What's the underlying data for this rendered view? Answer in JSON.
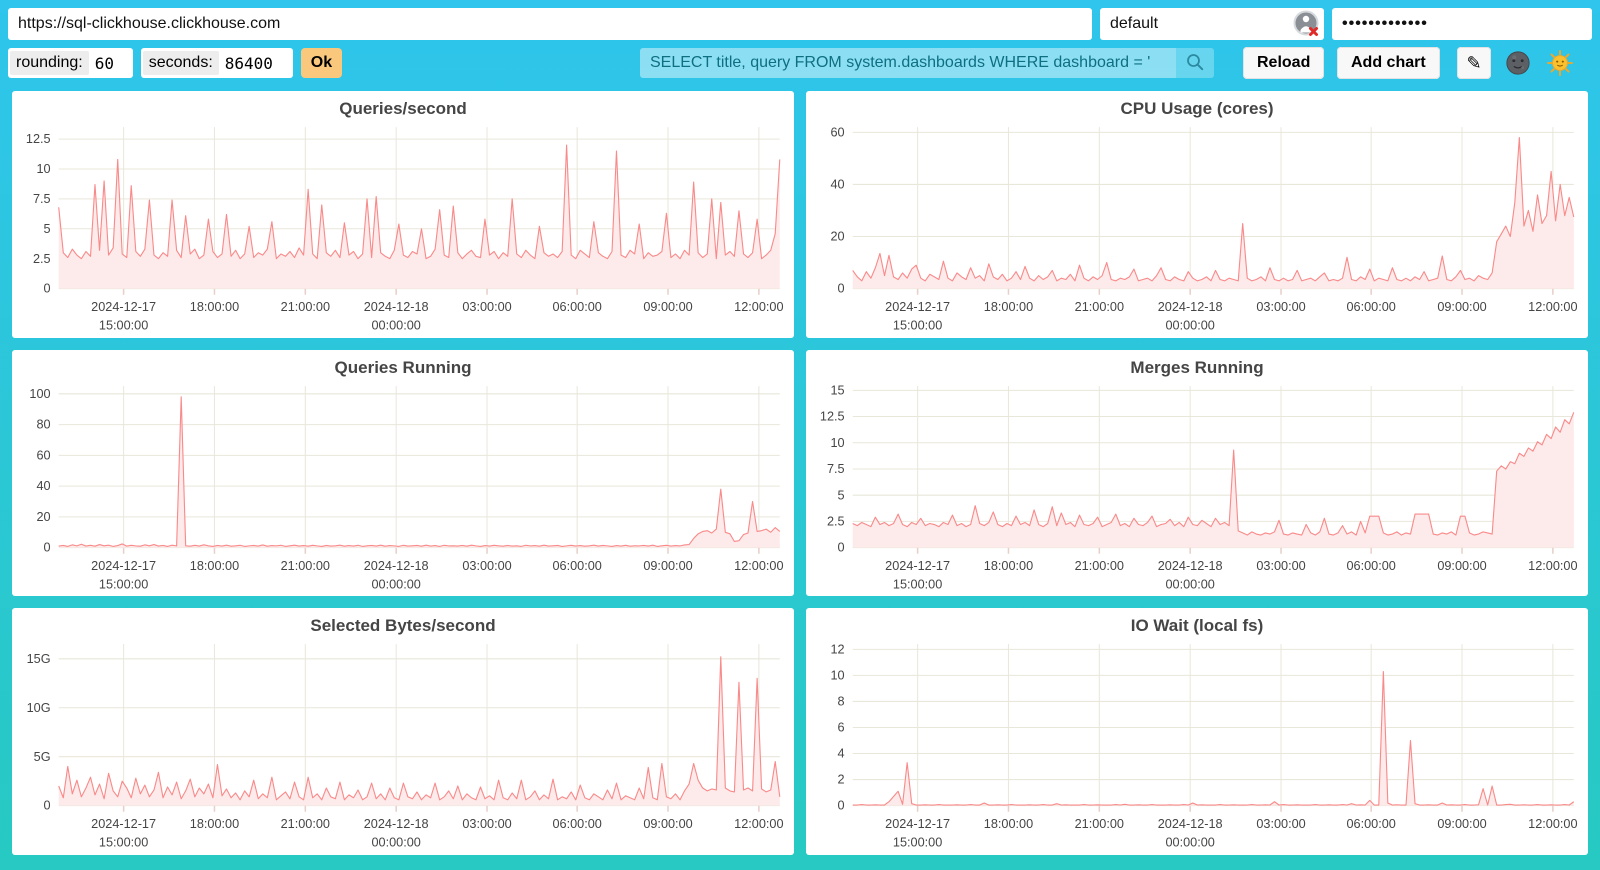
{
  "colors": {
    "bg_top": "#2fc5ec",
    "bg_bottom": "#27c9c2",
    "line": "#f98a8a",
    "fill": "#fdeaea",
    "grid": "#e9e7da",
    "tick_text": "#454545",
    "axis_tick": "#e8cfc9",
    "button_orange": "#f9c87c",
    "search_text": "#0e6e82"
  },
  "topbar": {
    "url_value": "https://sql-clickhouse.clickhouse.com",
    "user_value": "default",
    "user_icon": "broken-image-icon",
    "password_value": "•••••••••••••"
  },
  "controls": {
    "rounding_label": "rounding:",
    "rounding_value": "60",
    "seconds_label": "seconds:",
    "seconds_value": "86400",
    "ok_label": "Ok",
    "query_value": "SELECT title, query FROM system.dashboards WHERE dashboard = '",
    "search_icon": "magnifier-icon",
    "reload_label": "Reload",
    "add_chart_label": "Add chart",
    "edit_icon": "✎",
    "dark_theme_icon": "new-moon-face-icon",
    "light_theme_icon": "sun-with-face-icon"
  },
  "chart_data": {
    "type": "area",
    "x_axis_note": "time, 2024-12-17 ~12:45 to 2024-12-18 ~12:45, grid on, no legend",
    "time_ticks": [
      {
        "frac": 0.09,
        "line1": "2024-12-17",
        "line2": "15:00:00"
      },
      {
        "frac": 0.216,
        "line1": "18:00:00"
      },
      {
        "frac": 0.342,
        "line1": "21:00:00"
      },
      {
        "frac": 0.468,
        "line1": "2024-12-18",
        "line2": "00:00:00"
      },
      {
        "frac": 0.594,
        "line1": "03:00:00"
      },
      {
        "frac": 0.719,
        "line1": "06:00:00"
      },
      {
        "frac": 0.845,
        "line1": "09:00:00"
      },
      {
        "frac": 0.971,
        "line1": "12:00:00"
      }
    ],
    "charts": [
      {
        "title": "Queries/second",
        "ymax": 13.5,
        "yticks": [
          {
            "v": 0,
            "l": "0"
          },
          {
            "v": 2.5,
            "l": "2.5"
          },
          {
            "v": 5,
            "l": "5"
          },
          {
            "v": 7.5,
            "l": "7.5"
          },
          {
            "v": 10,
            "l": "10"
          },
          {
            "v": 12.5,
            "l": "12.5"
          }
        ],
        "values": [
          6.8,
          3.0,
          2.6,
          3.3,
          2.8,
          2.5,
          3.1,
          2.7,
          8.7,
          3.2,
          9.0,
          2.8,
          3.4,
          10.8,
          2.9,
          2.6,
          8.6,
          3.1,
          2.7,
          3.3,
          7.4,
          2.8,
          2.5,
          3.0,
          2.7,
          7.4,
          3.2,
          2.6,
          6.1,
          2.9,
          3.3,
          2.5,
          2.8,
          5.8,
          3.1,
          2.6,
          2.9,
          6.2,
          2.7,
          3.2,
          2.5,
          2.9,
          5.2,
          2.6,
          3.0,
          2.8,
          3.3,
          5.6,
          2.5,
          2.9,
          2.7,
          3.1,
          2.6,
          3.4,
          2.8,
          8.3,
          2.9,
          2.5,
          7.0,
          3.0,
          2.7,
          3.2,
          2.6,
          5.5,
          2.8,
          3.1,
          2.5,
          2.9,
          7.5,
          2.6,
          7.7,
          3.0,
          2.7,
          2.5,
          3.2,
          5.4,
          2.8,
          2.6,
          3.1,
          2.9,
          5.0,
          2.5,
          2.7,
          3.3,
          6.6,
          2.8,
          2.6,
          6.9,
          3.0,
          2.5,
          2.9,
          3.2,
          2.7,
          2.6,
          5.8,
          2.8,
          3.1,
          2.5,
          3.0,
          2.7,
          7.5,
          2.9,
          2.6,
          3.2,
          2.8,
          2.5,
          5.2,
          3.0,
          2.7,
          2.9,
          2.6,
          3.1,
          12.0,
          2.8,
          2.5,
          3.2,
          2.9,
          2.6,
          5.6,
          3.0,
          2.7,
          2.5,
          3.1,
          11.5,
          2.8,
          2.6,
          3.2,
          2.9,
          5.4,
          2.5,
          3.0,
          2.7,
          2.8,
          3.1,
          6.3,
          2.6,
          2.9,
          2.5,
          3.2,
          2.8,
          8.9,
          3.0,
          2.6,
          2.9,
          7.5,
          2.5,
          7.2,
          2.8,
          3.1,
          2.7,
          6.5,
          2.9,
          2.6,
          3.0,
          5.8,
          2.5,
          2.8,
          3.2,
          4.6,
          10.8
        ]
      },
      {
        "title": "CPU Usage (cores)",
        "ymax": 62,
        "yticks": [
          {
            "v": 0,
            "l": "0"
          },
          {
            "v": 20,
            "l": "20"
          },
          {
            "v": 40,
            "l": "40"
          },
          {
            "v": 60,
            "l": "60"
          }
        ],
        "values": [
          7.0,
          4.5,
          3.0,
          6.5,
          4.0,
          8.0,
          13.5,
          5.0,
          12.8,
          4.5,
          3.5,
          6.0,
          4.0,
          7.5,
          9.0,
          4.0,
          3.0,
          5.5,
          4.5,
          3.5,
          10.5,
          4.0,
          3.0,
          6.0,
          4.5,
          3.5,
          8.0,
          4.0,
          5.0,
          3.0,
          9.5,
          4.5,
          3.5,
          5.5,
          3.0,
          4.0,
          6.5,
          3.5,
          8.5,
          4.0,
          3.0,
          5.0,
          3.5,
          4.5,
          7.0,
          3.0,
          4.0,
          3.5,
          5.5,
          3.0,
          9.0,
          4.0,
          3.0,
          4.5,
          3.5,
          5.0,
          10.0,
          3.5,
          3.0,
          4.0,
          3.5,
          4.5,
          7.5,
          3.0,
          3.5,
          4.0,
          3.0,
          5.0,
          8.0,
          3.5,
          3.0,
          4.5,
          3.5,
          3.0,
          6.5,
          4.0,
          3.0,
          3.5,
          4.5,
          3.0,
          7.0,
          3.5,
          3.0,
          4.0,
          3.5,
          3.0,
          25.0,
          4.0,
          3.0,
          3.5,
          4.5,
          3.0,
          8.0,
          3.5,
          3.0,
          4.0,
          3.0,
          3.5,
          7.0,
          3.0,
          3.5,
          4.0,
          3.0,
          4.5,
          6.0,
          3.0,
          3.5,
          3.0,
          4.0,
          12.0,
          3.5,
          3.0,
          4.5,
          3.5,
          7.5,
          3.0,
          4.0,
          3.5,
          3.0,
          8.0,
          3.5,
          3.0,
          4.0,
          3.0,
          4.5,
          3.5,
          6.5,
          3.0,
          3.5,
          4.0,
          12.5,
          3.5,
          3.0,
          4.5,
          7.0,
          3.5,
          4.0,
          3.0,
          5.0,
          4.0,
          3.5,
          6.0,
          18.0,
          21.0,
          24.0,
          20.0,
          33.0,
          58.0,
          24.0,
          30.0,
          22.0,
          36.0,
          25.0,
          28.0,
          45.0,
          26.0,
          40.0,
          28.0,
          35.0,
          27.5
        ]
      },
      {
        "title": "Queries Running",
        "ymax": 105,
        "yticks": [
          {
            "v": 0,
            "l": "0"
          },
          {
            "v": 20,
            "l": "20"
          },
          {
            "v": 40,
            "l": "40"
          },
          {
            "v": 60,
            "l": "60"
          },
          {
            "v": 80,
            "l": "80"
          },
          {
            "v": 100,
            "l": "100"
          }
        ],
        "values": [
          1.0,
          1.4,
          0.8,
          1.8,
          1.1,
          2.2,
          1.0,
          1.5,
          0.9,
          2.0,
          1.2,
          1.6,
          0.8,
          1.3,
          2.4,
          1.0,
          1.5,
          1.1,
          0.9,
          1.8,
          1.2,
          2.0,
          1.0,
          1.4,
          0.8,
          1.6,
          1.1,
          98.0,
          1.2,
          0.9,
          1.5,
          1.0,
          1.8,
          1.2,
          0.8,
          1.4,
          1.0,
          1.6,
          0.9,
          1.2,
          1.5,
          0.8,
          1.1,
          1.4,
          1.0,
          1.7,
          0.9,
          1.3,
          1.1,
          1.5,
          0.8,
          1.2,
          1.6,
          1.0,
          1.3,
          0.9,
          1.5,
          1.1,
          0.8,
          1.4,
          1.0,
          1.2,
          1.6,
          0.9,
          1.3,
          1.0,
          1.5,
          0.8,
          1.2,
          1.4,
          1.0,
          1.6,
          0.9,
          1.3,
          1.1,
          0.8,
          1.5,
          1.0,
          1.2,
          1.4,
          0.9,
          1.6,
          1.0,
          1.3,
          0.8,
          1.5,
          1.1,
          1.2,
          1.0,
          1.4,
          0.9,
          1.6,
          1.1,
          0.8,
          1.3,
          1.0,
          1.5,
          1.2,
          0.9,
          1.4,
          1.0,
          1.2,
          0.8,
          1.5,
          1.1,
          1.3,
          0.9,
          1.6,
          1.0,
          1.2,
          1.4,
          0.8,
          1.1,
          1.5,
          1.0,
          1.3,
          0.9,
          1.2,
          1.6,
          1.0,
          1.4,
          1.1,
          0.8,
          1.3,
          1.0,
          1.5,
          0.9,
          1.2,
          1.1,
          1.4,
          1.0,
          1.6,
          0.8,
          1.2,
          1.5,
          1.0,
          1.3,
          1.1,
          1.7,
          2.0,
          6.0,
          9.0,
          10.5,
          11.0,
          9.5,
          12.0,
          38.0,
          10.0,
          9.0,
          4.0,
          4.5,
          8.5,
          9.5,
          30.0,
          10.5,
          11.0,
          12.0,
          10.0,
          13.0,
          10.5
        ]
      },
      {
        "title": "Merges Running",
        "ymax": 15.4,
        "yticks": [
          {
            "v": 0,
            "l": "0"
          },
          {
            "v": 2.5,
            "l": "2.5"
          },
          {
            "v": 5,
            "l": "5"
          },
          {
            "v": 7.5,
            "l": "7.5"
          },
          {
            "v": 10,
            "l": "10"
          },
          {
            "v": 12.5,
            "l": "12.5"
          },
          {
            "v": 15,
            "l": "15"
          }
        ],
        "values": [
          2.3,
          2.1,
          2.4,
          2.2,
          2.0,
          2.9,
          2.2,
          2.4,
          2.1,
          2.3,
          3.2,
          2.2,
          2.0,
          2.4,
          2.2,
          2.8,
          2.1,
          2.3,
          2.2,
          2.0,
          2.4,
          2.2,
          3.1,
          2.1,
          2.3,
          2.0,
          2.2,
          4.0,
          2.3,
          2.1,
          2.4,
          3.4,
          2.2,
          2.0,
          2.3,
          2.1,
          3.0,
          2.2,
          2.4,
          2.1,
          3.6,
          2.2,
          2.0,
          2.3,
          3.9,
          2.1,
          3.3,
          2.2,
          2.4,
          2.0,
          3.1,
          2.2,
          2.1,
          2.3,
          2.9,
          2.0,
          2.2,
          2.4,
          3.2,
          2.1,
          2.3,
          2.0,
          2.8,
          2.2,
          2.1,
          2.4,
          3.0,
          2.0,
          2.2,
          2.3,
          2.7,
          2.1,
          2.4,
          2.0,
          2.9,
          2.2,
          2.1,
          2.6,
          2.3,
          2.0,
          2.8,
          2.2,
          2.4,
          2.1,
          9.3,
          1.6,
          1.4,
          1.2,
          1.5,
          1.3,
          1.2,
          1.4,
          1.3,
          1.5,
          2.6,
          1.3,
          1.2,
          1.4,
          1.3,
          1.2,
          2.2,
          1.4,
          1.2,
          1.5,
          2.8,
          1.3,
          1.2,
          1.4,
          2.1,
          1.3,
          1.5,
          1.2,
          2.5,
          1.4,
          3.0,
          3.0,
          3.0,
          1.4,
          1.2,
          1.3,
          1.5,
          1.2,
          1.4,
          1.3,
          3.2,
          3.2,
          3.2,
          3.2,
          1.3,
          1.2,
          1.4,
          1.3,
          1.5,
          1.2,
          3.0,
          3.0,
          1.4,
          1.2,
          1.3,
          1.5,
          1.4,
          1.3,
          7.3,
          7.8,
          7.5,
          8.2,
          8.0,
          9.0,
          8.7,
          9.5,
          9.2,
          10.1,
          9.8,
          10.8,
          10.4,
          11.5,
          11.0,
          12.2,
          11.8,
          12.9
        ]
      },
      {
        "title": "Selected Bytes/second",
        "ymax": 16.5,
        "yticks": [
          {
            "v": 0,
            "l": "0"
          },
          {
            "v": 5,
            "l": "5G"
          },
          {
            "v": 10,
            "l": "10G"
          },
          {
            "v": 15,
            "l": "15G"
          }
        ],
        "values": [
          2.0,
          0.8,
          4.0,
          1.2,
          2.6,
          0.9,
          1.8,
          2.9,
          1.1,
          2.2,
          0.7,
          3.3,
          1.5,
          0.9,
          2.5,
          1.8,
          0.8,
          2.8,
          1.2,
          2.1,
          0.9,
          1.6,
          3.4,
          0.8,
          1.9,
          1.1,
          2.4,
          0.7,
          1.5,
          2.7,
          0.9,
          1.8,
          1.2,
          2.2,
          0.8,
          4.2,
          1.0,
          1.7,
          0.8,
          1.3,
          0.6,
          1.5,
          0.9,
          2.6,
          0.7,
          1.2,
          0.8,
          2.9,
          0.6,
          1.0,
          1.4,
          0.7,
          2.4,
          0.9,
          0.6,
          2.9,
          0.8,
          1.2,
          0.6,
          1.8,
          0.9,
          0.7,
          2.4,
          0.6,
          1.1,
          0.8,
          1.6,
          0.6,
          0.9,
          2.3,
          0.7,
          1.2,
          0.6,
          1.8,
          0.8,
          0.6,
          2.3,
          0.9,
          0.7,
          1.4,
          0.6,
          1.1,
          0.8,
          2.3,
          0.6,
          0.9,
          1.5,
          0.7,
          2.0,
          0.6,
          1.2,
          0.8,
          0.6,
          1.9,
          0.7,
          1.0,
          0.6,
          2.6,
          0.8,
          0.6,
          1.3,
          0.7,
          2.6,
          0.6,
          0.9,
          1.5,
          0.6,
          1.1,
          0.7,
          2.7,
          0.6,
          0.9,
          0.7,
          1.4,
          0.6,
          2.1,
          0.8,
          0.6,
          1.2,
          0.9,
          0.6,
          1.6,
          0.7,
          2.3,
          0.6,
          1.0,
          0.8,
          0.6,
          1.8,
          0.7,
          3.9,
          0.8,
          0.6,
          4.3,
          0.9,
          0.7,
          1.2,
          0.6,
          1.5,
          2.2,
          4.3,
          2.6,
          1.8,
          1.5,
          1.7,
          1.6,
          15.2,
          1.8,
          1.5,
          1.4,
          12.6,
          1.6,
          1.8,
          1.5,
          13.0,
          1.7,
          1.4,
          1.6,
          4.5,
          0.9
        ]
      },
      {
        "title": "IO Wait (local fs)",
        "ymax": 12.4,
        "yticks": [
          {
            "v": 0,
            "l": "0"
          },
          {
            "v": 2,
            "l": "2"
          },
          {
            "v": 4,
            "l": "4"
          },
          {
            "v": 6,
            "l": "6"
          },
          {
            "v": 8,
            "l": "8"
          },
          {
            "v": 10,
            "l": "10"
          },
          {
            "v": 12,
            "l": "12"
          }
        ],
        "values": [
          0.05,
          0.05,
          0.08,
          0.05,
          0.05,
          0.06,
          0.05,
          0.05,
          0.3,
          0.7,
          1.1,
          0.1,
          3.3,
          0.15,
          0.05,
          0.05,
          0.06,
          0.05,
          0.05,
          0.08,
          0.05,
          0.05,
          0.05,
          0.06,
          0.05,
          0.05,
          0.08,
          0.05,
          0.05,
          0.2,
          0.05,
          0.05,
          0.06,
          0.05,
          0.05,
          0.08,
          0.05,
          0.05,
          0.05,
          0.06,
          0.05,
          0.05,
          0.08,
          0.05,
          0.05,
          0.15,
          0.05,
          0.06,
          0.05,
          0.05,
          0.05,
          0.08,
          0.05,
          0.05,
          0.06,
          0.05,
          0.05,
          0.05,
          0.08,
          0.05,
          0.1,
          0.05,
          0.05,
          0.06,
          0.05,
          0.05,
          0.08,
          0.05,
          0.05,
          0.05,
          0.06,
          0.05,
          0.05,
          0.08,
          0.05,
          0.2,
          0.05,
          0.06,
          0.05,
          0.05,
          0.05,
          0.08,
          0.05,
          0.05,
          0.06,
          0.05,
          0.05,
          0.05,
          0.08,
          0.05,
          0.05,
          0.06,
          0.05,
          0.3,
          0.05,
          0.08,
          0.05,
          0.05,
          0.06,
          0.05,
          0.05,
          0.05,
          0.08,
          0.05,
          0.05,
          0.06,
          0.05,
          0.05,
          0.08,
          0.05,
          0.15,
          0.05,
          0.06,
          0.05,
          0.4,
          0.05,
          0.05,
          10.3,
          0.2,
          0.05,
          0.06,
          0.05,
          0.05,
          5.0,
          0.15,
          0.05,
          0.05,
          0.06,
          0.05,
          0.05,
          0.2,
          0.05,
          0.06,
          0.05,
          0.05,
          0.08,
          0.05,
          0.05,
          0.06,
          1.3,
          0.05,
          1.5,
          0.05,
          0.05,
          0.08,
          0.1,
          0.05,
          0.05,
          0.06,
          0.05,
          0.05,
          0.08,
          0.05,
          0.05,
          0.06,
          0.05,
          0.05,
          0.08,
          0.05,
          0.3
        ]
      }
    ]
  }
}
